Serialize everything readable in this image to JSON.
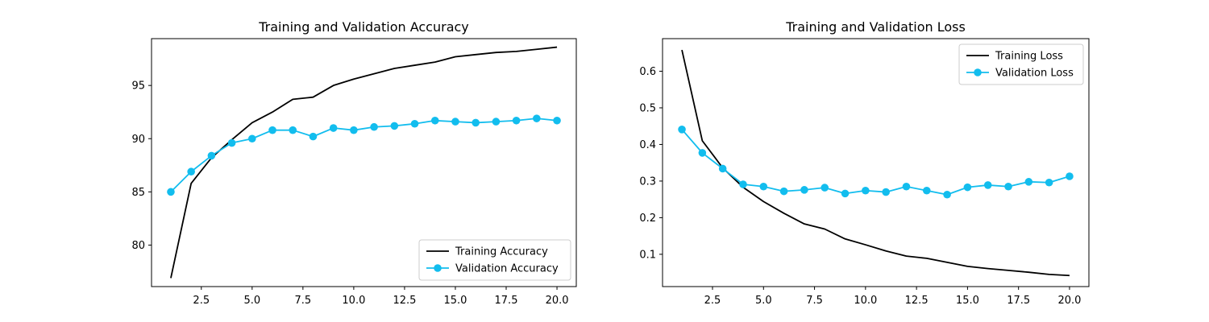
{
  "chart_data": [
    {
      "type": "line",
      "title": "Training and Validation Accuracy",
      "xlabel": "",
      "ylabel": "",
      "x": [
        1,
        2,
        3,
        4,
        5,
        6,
        7,
        8,
        9,
        10,
        11,
        12,
        13,
        14,
        15,
        16,
        17,
        18,
        19,
        20
      ],
      "xlim": [
        0.05,
        20.95
      ],
      "ylim": [
        76.1,
        99.4
      ],
      "xticks": [
        2.5,
        5.0,
        7.5,
        10.0,
        12.5,
        15.0,
        17.5,
        20.0
      ],
      "xtick_labels": [
        "2.5",
        "5.0",
        "7.5",
        "10.0",
        "12.5",
        "15.0",
        "17.5",
        "20.0"
      ],
      "yticks": [
        80,
        85,
        90,
        95
      ],
      "ytick_labels": [
        "80",
        "85",
        "90",
        "95"
      ],
      "legend_position": "lower-right",
      "grid": false,
      "series": [
        {
          "name": "Training Accuracy",
          "color": "#000000",
          "marker": "none",
          "values": [
            76.9,
            85.8,
            88.2,
            89.9,
            91.5,
            92.5,
            93.7,
            93.9,
            95.0,
            95.6,
            96.1,
            96.6,
            96.9,
            97.2,
            97.7,
            97.9,
            98.1,
            98.2,
            98.4,
            98.6
          ]
        },
        {
          "name": "Validation Accuracy",
          "color": "#12bdee",
          "marker": "circle",
          "values": [
            85.0,
            86.9,
            88.4,
            89.6,
            90.0,
            90.8,
            90.8,
            90.2,
            91.0,
            90.8,
            91.1,
            91.2,
            91.4,
            91.7,
            91.6,
            91.5,
            91.6,
            91.7,
            91.9,
            91.7
          ]
        }
      ]
    },
    {
      "type": "line",
      "title": "Training and Validation Loss",
      "xlabel": "",
      "ylabel": "",
      "x": [
        1,
        2,
        3,
        4,
        5,
        6,
        7,
        8,
        9,
        10,
        11,
        12,
        13,
        14,
        15,
        16,
        17,
        18,
        19,
        20
      ],
      "xlim": [
        0.05,
        20.95
      ],
      "ylim": [
        0.0118,
        0.689
      ],
      "xticks": [
        2.5,
        5.0,
        7.5,
        10.0,
        12.5,
        15.0,
        17.5,
        20.0
      ],
      "xtick_labels": [
        "2.5",
        "5.0",
        "7.5",
        "10.0",
        "12.5",
        "15.0",
        "17.5",
        "20.0"
      ],
      "yticks": [
        0.1,
        0.2,
        0.3,
        0.4,
        0.5,
        0.6
      ],
      "ytick_labels": [
        "0.1",
        "0.2",
        "0.3",
        "0.4",
        "0.5",
        "0.6"
      ],
      "legend_position": "upper-right",
      "grid": false,
      "series": [
        {
          "name": "Training Loss",
          "color": "#000000",
          "marker": "none",
          "values": [
            0.658,
            0.41,
            0.336,
            0.283,
            0.244,
            0.212,
            0.183,
            0.169,
            0.142,
            0.126,
            0.109,
            0.095,
            0.089,
            0.078,
            0.067,
            0.061,
            0.056,
            0.051,
            0.045,
            0.042
          ]
        },
        {
          "name": "Validation Loss",
          "color": "#12bdee",
          "marker": "circle",
          "values": [
            0.441,
            0.377,
            0.334,
            0.291,
            0.285,
            0.272,
            0.276,
            0.282,
            0.266,
            0.274,
            0.27,
            0.285,
            0.274,
            0.263,
            0.283,
            0.289,
            0.285,
            0.298,
            0.296,
            0.313
          ]
        }
      ]
    }
  ]
}
